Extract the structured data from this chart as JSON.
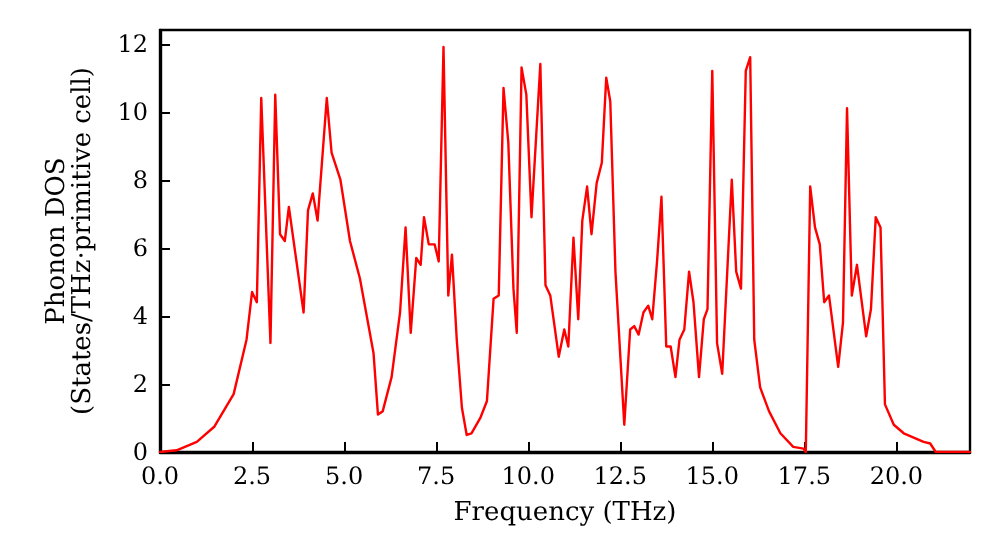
{
  "chart_data": {
    "type": "line",
    "xlabel": "Frequency (THz)",
    "ylabel": "Phonon DOS\n(States/THz·primitive cell)",
    "x": [
      0,
      0.45,
      1.0,
      1.48,
      2.0,
      2.35,
      2.5,
      2.63,
      2.75,
      3.0,
      3.13,
      3.26,
      3.39,
      3.5,
      3.9,
      4.02,
      4.15,
      4.28,
      4.53,
      4.66,
      4.9,
      5.16,
      5.43,
      5.8,
      5.92,
      6.05,
      6.29,
      6.52,
      6.67,
      6.81,
      6.96,
      7.08,
      7.17,
      7.3,
      7.46,
      7.57,
      7.7,
      7.83,
      7.93,
      8.06,
      8.2,
      8.33,
      8.46,
      8.7,
      8.88,
      9.06,
      9.2,
      9.33,
      9.46,
      9.6,
      9.69,
      9.82,
      9.95,
      10.09,
      10.33,
      10.47,
      10.6,
      10.83,
      10.98,
      11.09,
      11.23,
      11.36,
      11.47,
      11.6,
      11.72,
      11.86,
      12.0,
      12.12,
      12.23,
      12.37,
      12.61,
      12.77,
      12.88,
      13.0,
      13.13,
      13.26,
      13.37,
      13.5,
      13.62,
      13.75,
      13.87,
      14.0,
      14.11,
      14.24,
      14.37,
      14.49,
      14.64,
      14.77,
      14.87,
      15.0,
      15.13,
      15.27,
      15.53,
      15.65,
      15.78,
      15.91,
      16.03,
      16.14,
      16.3,
      16.54,
      16.85,
      17.2,
      17.48,
      17.54,
      17.66,
      17.79,
      17.92,
      18.04,
      18.17,
      18.42,
      18.55,
      18.66,
      18.79,
      18.93,
      19.18,
      19.31,
      19.44,
      19.57,
      19.69,
      19.93,
      20.2,
      20.74,
      20.92,
      21.07,
      22.0
    ],
    "series": [
      {
        "color": "#ff0000",
        "values": [
          0,
          0.05,
          0.3,
          0.75,
          1.7,
          3.3,
          4.7,
          4.4,
          10.4,
          3.2,
          10.5,
          6.4,
          6.2,
          7.2,
          4.1,
          7.1,
          7.6,
          6.8,
          10.4,
          8.8,
          8.0,
          6.2,
          5.1,
          2.9,
          1.1,
          1.2,
          2.2,
          4.1,
          6.6,
          3.5,
          5.7,
          5.5,
          6.9,
          6.1,
          6.1,
          5.6,
          11.9,
          4.6,
          5.8,
          3.3,
          1.3,
          0.5,
          0.55,
          1.0,
          1.5,
          4.5,
          4.6,
          10.7,
          9.1,
          4.8,
          3.5,
          11.3,
          10.5,
          6.9,
          11.4,
          4.9,
          4.6,
          2.8,
          3.6,
          3.1,
          6.3,
          3.9,
          6.8,
          7.8,
          6.4,
          7.9,
          8.5,
          11.0,
          10.3,
          5.3,
          0.8,
          3.6,
          3.7,
          3.45,
          4.1,
          4.3,
          3.9,
          5.6,
          7.5,
          3.1,
          3.1,
          2.2,
          3.3,
          3.6,
          5.3,
          4.4,
          2.2,
          3.9,
          4.2,
          11.2,
          3.2,
          2.3,
          8.0,
          5.3,
          4.8,
          11.2,
          11.6,
          3.3,
          1.9,
          1.2,
          0.55,
          0.15,
          0.1,
          0,
          7.8,
          6.6,
          6.1,
          4.4,
          4.6,
          2.5,
          3.8,
          10.1,
          4.6,
          5.5,
          3.4,
          4.2,
          6.9,
          6.6,
          1.4,
          0.8,
          0.55,
          0.3,
          0.25,
          0,
          0
        ]
      }
    ],
    "xlim": [
      0,
      22
    ],
    "ylim": [
      0,
      12.4
    ],
    "xticks": [
      {
        "value": 0,
        "label": "0.0"
      },
      {
        "value": 2.5,
        "label": "2.5"
      },
      {
        "value": 5,
        "label": "5.0"
      },
      {
        "value": 7.5,
        "label": "7.5"
      },
      {
        "value": 10,
        "label": "10.0"
      },
      {
        "value": 12.5,
        "label": "12.5"
      },
      {
        "value": 15,
        "label": "15.0"
      },
      {
        "value": 17.5,
        "label": "17.5"
      },
      {
        "value": 20,
        "label": "20.0"
      }
    ],
    "yticks": [
      0,
      2,
      4,
      6,
      8,
      10,
      12
    ],
    "grid": false,
    "marker": "none",
    "line_style": "solid"
  }
}
